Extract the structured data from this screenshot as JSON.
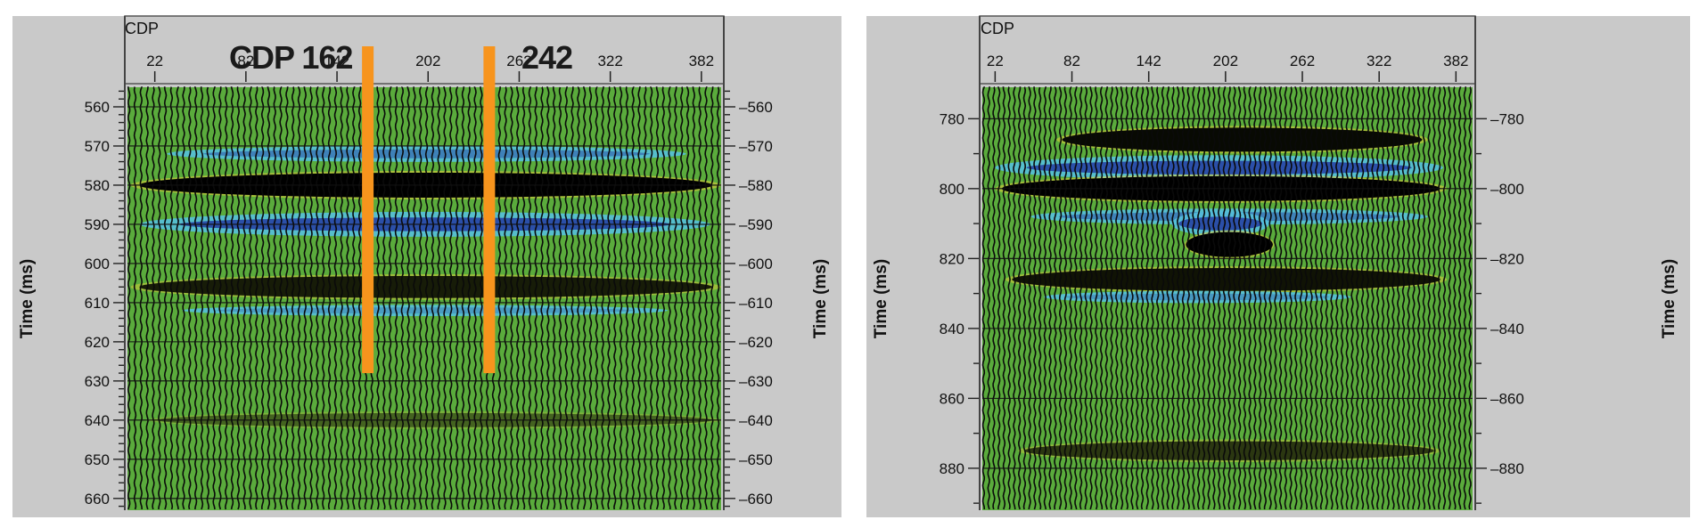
{
  "colors": {
    "background": "#c9c9c9",
    "plot": "#5aab3c",
    "trace": "#0a0a0a",
    "peak": "#000000",
    "trough_light": "#55c0dc",
    "trough_dark": "#2b4fa8",
    "highlight": "#e8d23a",
    "marker": "#f7941d"
  },
  "chart_data": [
    {
      "type": "heatmap",
      "title": "",
      "xlabel": "CDP",
      "ylabel": "Time (ms)",
      "x_ticks": [
        22,
        82,
        142,
        202,
        262,
        322,
        382
      ],
      "xlim": [
        4,
        395
      ],
      "y_ticks": [
        560,
        570,
        580,
        590,
        600,
        610,
        620,
        630,
        640,
        650,
        660
      ],
      "ylim": [
        555,
        663
      ],
      "y_minor_step": 2,
      "trace_spacing": 4,
      "events": [
        {
          "time": 572,
          "polarity": "trough",
          "strength": 0.55,
          "x_start": 30,
          "x_end": 372
        },
        {
          "time": 580,
          "polarity": "peak",
          "strength": 1.0,
          "x_start": 6,
          "x_end": 395
        },
        {
          "time": 590,
          "polarity": "trough",
          "strength": 1.0,
          "x_start": 12,
          "x_end": 388
        },
        {
          "time": 606,
          "polarity": "peak",
          "strength": 0.85,
          "x_start": 6,
          "x_end": 395
        },
        {
          "time": 612,
          "polarity": "trough",
          "strength": 0.3,
          "x_start": 40,
          "x_end": 360
        },
        {
          "time": 640,
          "polarity": "peak",
          "strength": 0.45,
          "x_start": 18,
          "x_end": 395
        }
      ],
      "markers": [
        {
          "label": "CDP 162",
          "cdp": 162
        },
        {
          "label": "242",
          "cdp": 242
        }
      ],
      "marker_time_range": [
        555,
        628
      ]
    },
    {
      "type": "heatmap",
      "title": "",
      "xlabel": "CDP",
      "ylabel": "Time (ms)",
      "x_ticks": [
        22,
        82,
        142,
        202,
        262,
        322,
        382
      ],
      "xlim": [
        12,
        395
      ],
      "y_ticks": [
        780,
        800,
        820,
        840,
        860,
        880
      ],
      "ylim": [
        771,
        892
      ],
      "y_minor_step": 10,
      "trace_spacing": 4,
      "events": [
        {
          "time": 786,
          "polarity": "peak",
          "strength": 0.95,
          "x_start": 70,
          "x_end": 360
        },
        {
          "time": 794,
          "polarity": "trough",
          "strength": 1.0,
          "x_start": 22,
          "x_end": 372
        },
        {
          "time": 800,
          "polarity": "peak",
          "strength": 1.0,
          "x_start": 22,
          "x_end": 375
        },
        {
          "time": 808,
          "polarity": "trough",
          "strength": 0.55,
          "x_start": 50,
          "x_end": 360
        },
        {
          "time": 810,
          "polarity": "trough",
          "strength": 1.0,
          "x_start": 160,
          "x_end": 236
        },
        {
          "time": 816,
          "polarity": "peak",
          "strength": 1.0,
          "x_start": 170,
          "x_end": 240
        },
        {
          "time": 826,
          "polarity": "peak",
          "strength": 0.9,
          "x_start": 30,
          "x_end": 375
        },
        {
          "time": 831,
          "polarity": "trough",
          "strength": 0.35,
          "x_start": 60,
          "x_end": 300
        },
        {
          "time": 875,
          "polarity": "peak",
          "strength": 0.7,
          "x_start": 40,
          "x_end": 370
        }
      ],
      "markers": []
    }
  ]
}
